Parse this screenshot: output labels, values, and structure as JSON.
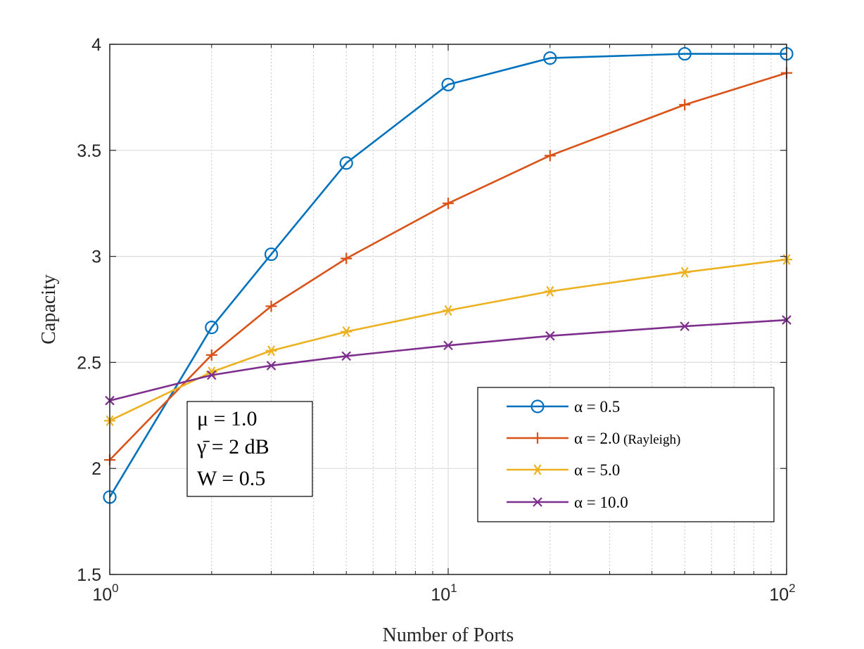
{
  "chart_data": {
    "type": "line",
    "title": "",
    "xlabel": "Number of Ports",
    "ylabel": "Capacity",
    "xscale": "log",
    "xlim": [
      1,
      100
    ],
    "ylim": [
      1.5,
      4
    ],
    "x_ticks": [
      {
        "base": "10",
        "exp": "0"
      },
      {
        "base": "10",
        "exp": "1"
      },
      {
        "base": "10",
        "exp": "2"
      }
    ],
    "y_ticks": [
      "1.5",
      "2",
      "2.5",
      "3",
      "3.5",
      "4"
    ],
    "grid": true,
    "legend_position": "lower-right",
    "x": [
      1,
      2,
      3,
      5,
      10,
      20,
      50,
      100
    ],
    "series": [
      {
        "name": "α = 0.5",
        "name_suffix": "",
        "color": "#0072BD",
        "marker": "circle",
        "values": [
          1.865,
          2.665,
          3.01,
          3.44,
          3.81,
          3.935,
          3.955,
          3.955
        ]
      },
      {
        "name": "α = 2.0",
        "name_suffix": "(Rayleigh)",
        "color": "#D95319",
        "marker": "plus",
        "values": [
          2.04,
          2.535,
          2.765,
          2.99,
          3.25,
          3.475,
          3.715,
          3.865
        ]
      },
      {
        "name": "α = 5.0",
        "name_suffix": "",
        "color": "#EDB120",
        "marker": "asterisk",
        "values": [
          2.225,
          2.455,
          2.555,
          2.645,
          2.745,
          2.835,
          2.925,
          2.985
        ]
      },
      {
        "name": "α = 10.0",
        "name_suffix": "",
        "color": "#7E2F8E",
        "marker": "cross",
        "values": [
          2.32,
          2.44,
          2.485,
          2.53,
          2.58,
          2.625,
          2.67,
          2.7
        ]
      }
    ],
    "annotation": {
      "line1": "μ = 1.0",
      "line2": "γ̄ = 2 dB",
      "line3": "W = 0.5"
    }
  }
}
